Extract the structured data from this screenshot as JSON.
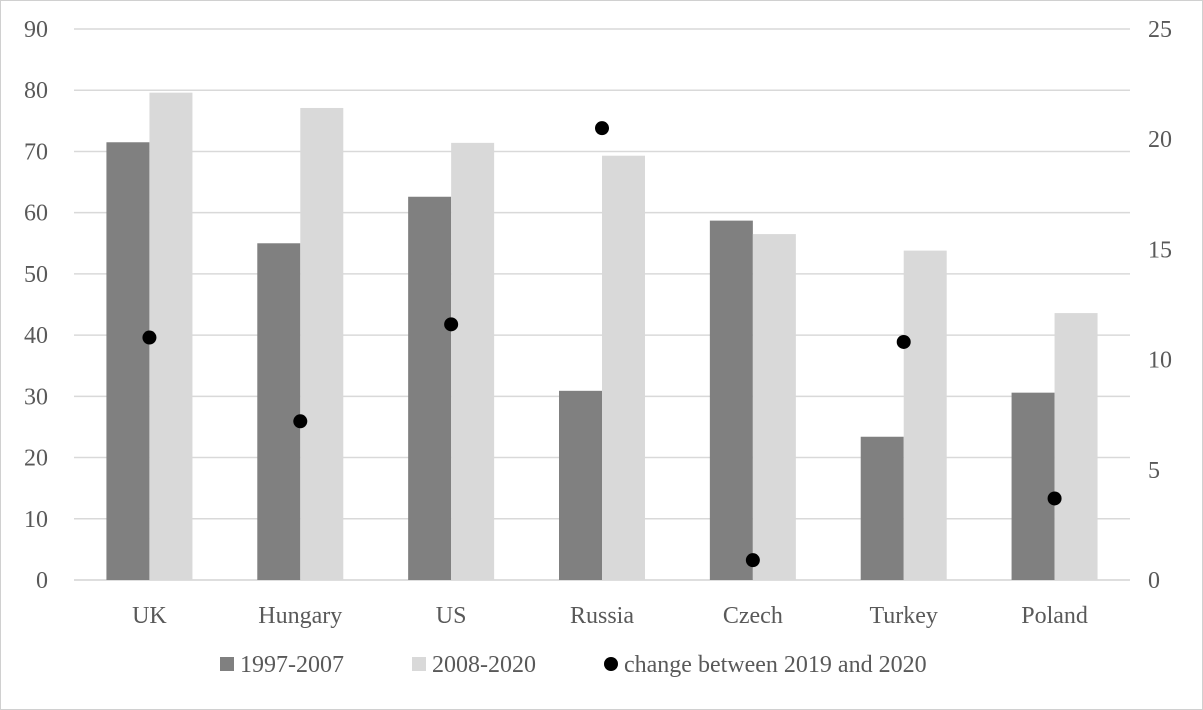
{
  "chart_data": {
    "type": "bar",
    "categories": [
      "UK",
      "Hungary",
      "US",
      "Russia",
      "Czech",
      "Turkey",
      "Poland"
    ],
    "series": [
      {
        "name": "1997-2007",
        "type": "bar",
        "axis": "left",
        "color": "#808080",
        "values": [
          71.5,
          55.0,
          62.6,
          30.9,
          58.7,
          23.4,
          30.6
        ]
      },
      {
        "name": "2008-2020",
        "type": "bar",
        "axis": "left",
        "color": "#d9d9d9",
        "values": [
          79.6,
          77.1,
          71.4,
          69.3,
          56.5,
          53.8,
          43.6
        ]
      },
      {
        "name": "change between 2019 and 2020",
        "type": "scatter",
        "axis": "right",
        "color": "#000000",
        "values": [
          11.0,
          7.2,
          11.6,
          20.5,
          0.9,
          10.8,
          3.7
        ]
      }
    ],
    "y_left": {
      "min": 0,
      "max": 90,
      "step": 10,
      "ticks": [
        "0",
        "10",
        "20",
        "30",
        "40",
        "50",
        "60",
        "70",
        "80",
        "90"
      ]
    },
    "y_right": {
      "min": 0,
      "max": 25,
      "step": 5,
      "ticks": [
        "0",
        "5",
        "10",
        "15",
        "20",
        "25"
      ]
    },
    "grid": true,
    "legend_position": "bottom",
    "colors": {
      "grid": "#d9d9d9",
      "axis_text": "#595959"
    }
  }
}
